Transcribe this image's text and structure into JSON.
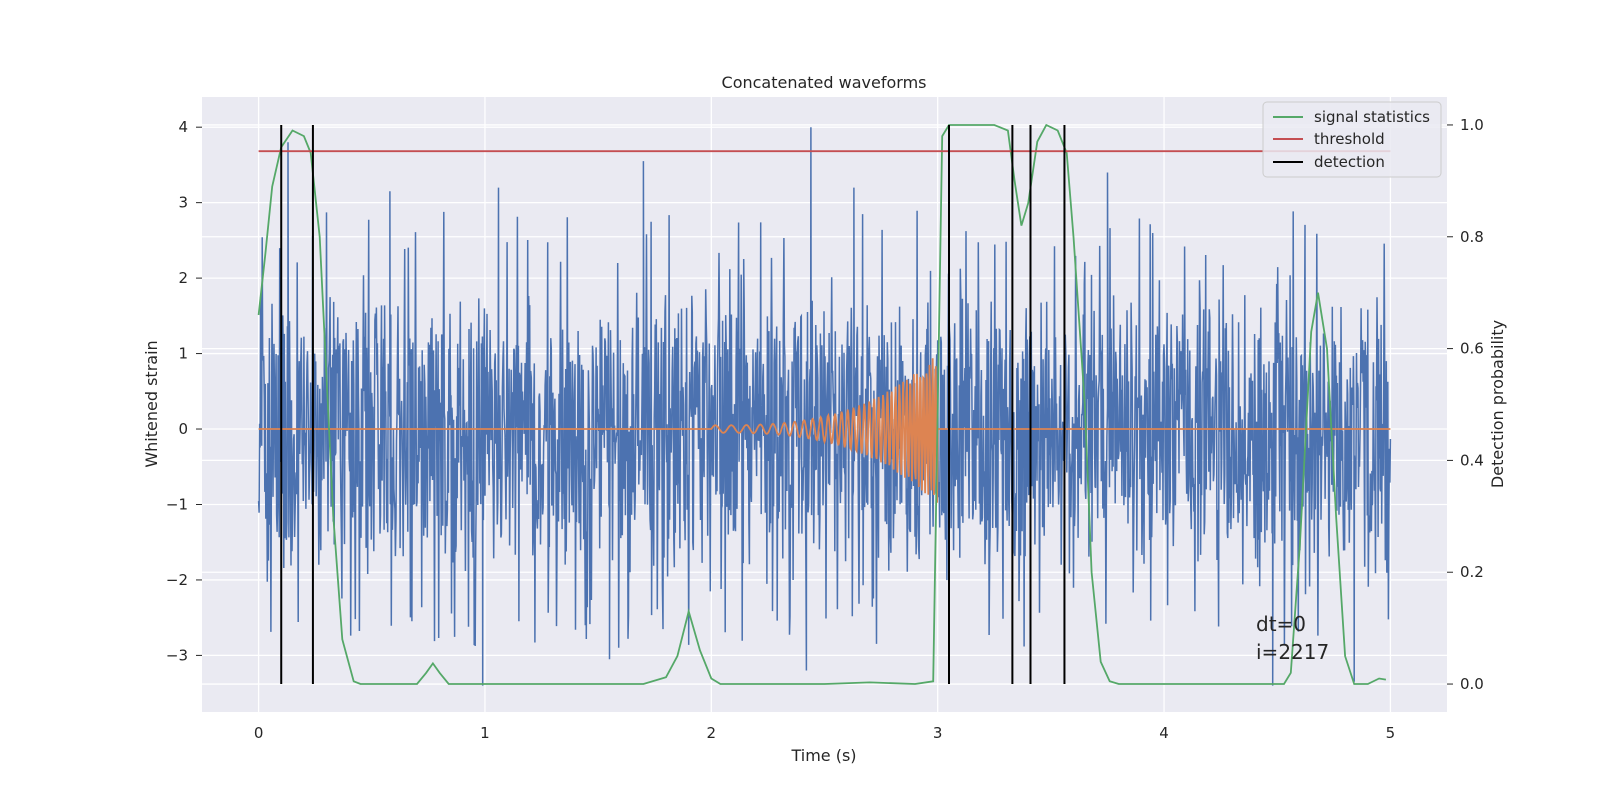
{
  "chart_data": {
    "type": "line",
    "title": "Concatenated waveforms",
    "xlabel": "Time (s)",
    "ylabel": "Whitened strain",
    "ylabel_right": "Detection probability",
    "xlim": [
      -0.25,
      5.25
    ],
    "ylim": [
      -3.75,
      4.4
    ],
    "ylim_right": [
      -0.05,
      1.05
    ],
    "xticks": [
      0,
      1,
      2,
      3,
      4,
      5
    ],
    "yticks": [
      -3,
      -2,
      -1,
      0,
      1,
      2,
      3,
      4
    ],
    "yticks_right": [
      0.0,
      0.2,
      0.4,
      0.6,
      0.8,
      1.0
    ],
    "ytick_labels": [
      "−3",
      "−2",
      "−1",
      "0",
      "1",
      "2",
      "3",
      "4"
    ],
    "yticks_right_labels": [
      "0.0",
      "0.2",
      "0.4",
      "0.6",
      "0.8",
      "1.0"
    ],
    "grid": true,
    "legend_position": "top-right",
    "legend": [
      {
        "label": "signal statistics",
        "color": "#55a868"
      },
      {
        "label": "threshold",
        "color": "#c44e52"
      },
      {
        "label": "detection",
        "color": "#000000"
      }
    ],
    "annotations": [
      "dt=0",
      "i=2217"
    ],
    "series": [
      {
        "name": "whitened strain",
        "axis": "left",
        "color": "#4c72b0",
        "style": "noise",
        "x_range": [
          0,
          5
        ],
        "envelope_low": -2.0,
        "envelope_high": 2.0,
        "spikes": [
          {
            "x": 0.13,
            "y": 3.8
          },
          {
            "x": 0.58,
            "y": 3.15
          },
          {
            "x": 0.99,
            "y": -3.4
          },
          {
            "x": 1.06,
            "y": 3.2
          },
          {
            "x": 1.7,
            "y": 3.55
          },
          {
            "x": 1.55,
            "y": -3.05
          },
          {
            "x": 2.44,
            "y": 4.0
          },
          {
            "x": 2.42,
            "y": -3.2
          },
          {
            "x": 3.75,
            "y": 3.4
          },
          {
            "x": 4.48,
            "y": -3.4
          },
          {
            "x": 4.84,
            "y": -3.35
          },
          {
            "x": 2.63,
            "y": 3.2
          }
        ]
      },
      {
        "name": "template",
        "axis": "left",
        "color": "#dd8452",
        "style": "chirp",
        "x_range": [
          0,
          5
        ],
        "chirp_start": 2.0,
        "chirp_end": 3.0,
        "chirp_peak_amplitude": 1.0
      },
      {
        "name": "signal statistics",
        "axis": "right",
        "color": "#55a868",
        "x": [
          0,
          0.03,
          0.06,
          0.1,
          0.15,
          0.2,
          0.23,
          0.27,
          0.3,
          0.33,
          0.37,
          0.42,
          0.45,
          0.5,
          0.7,
          0.74,
          0.77,
          0.8,
          0.84,
          0.9,
          1.7,
          1.8,
          1.85,
          1.9,
          1.95,
          2.0,
          2.04,
          2.1,
          2.5,
          2.7,
          2.9,
          2.98,
          3.02,
          3.05,
          3.1,
          3.25,
          3.31,
          3.34,
          3.37,
          3.4,
          3.44,
          3.48,
          3.53,
          3.57,
          3.6,
          3.65,
          3.68,
          3.72,
          3.76,
          3.8,
          4.48,
          4.53,
          4.56,
          4.6,
          4.65,
          4.68,
          4.72,
          4.76,
          4.8,
          4.84,
          4.9,
          4.95,
          4.98
        ],
        "y": [
          0.66,
          0.77,
          0.89,
          0.96,
          0.99,
          0.98,
          0.95,
          0.8,
          0.55,
          0.3,
          0.08,
          0.005,
          0.0,
          0.0,
          0.0,
          0.02,
          0.037,
          0.02,
          0.0,
          0.0,
          0.0,
          0.012,
          0.05,
          0.13,
          0.06,
          0.01,
          0.0,
          0.0,
          0.0,
          0.003,
          0.0,
          0.005,
          0.98,
          1.0,
          1.0,
          1.0,
          0.99,
          0.9,
          0.82,
          0.86,
          0.97,
          1.0,
          0.99,
          0.95,
          0.8,
          0.5,
          0.2,
          0.04,
          0.005,
          0.0,
          0.0,
          0.0,
          0.02,
          0.25,
          0.63,
          0.7,
          0.6,
          0.3,
          0.05,
          0.0,
          0.0,
          0.01,
          0.008
        ]
      },
      {
        "name": "threshold",
        "axis": "right",
        "color": "#c44e52",
        "x": [
          0,
          5
        ],
        "y": [
          0.953,
          0.953
        ]
      }
    ],
    "detections": [
      0.1,
      0.24,
      3.05,
      3.33,
      3.41,
      3.56
    ]
  }
}
